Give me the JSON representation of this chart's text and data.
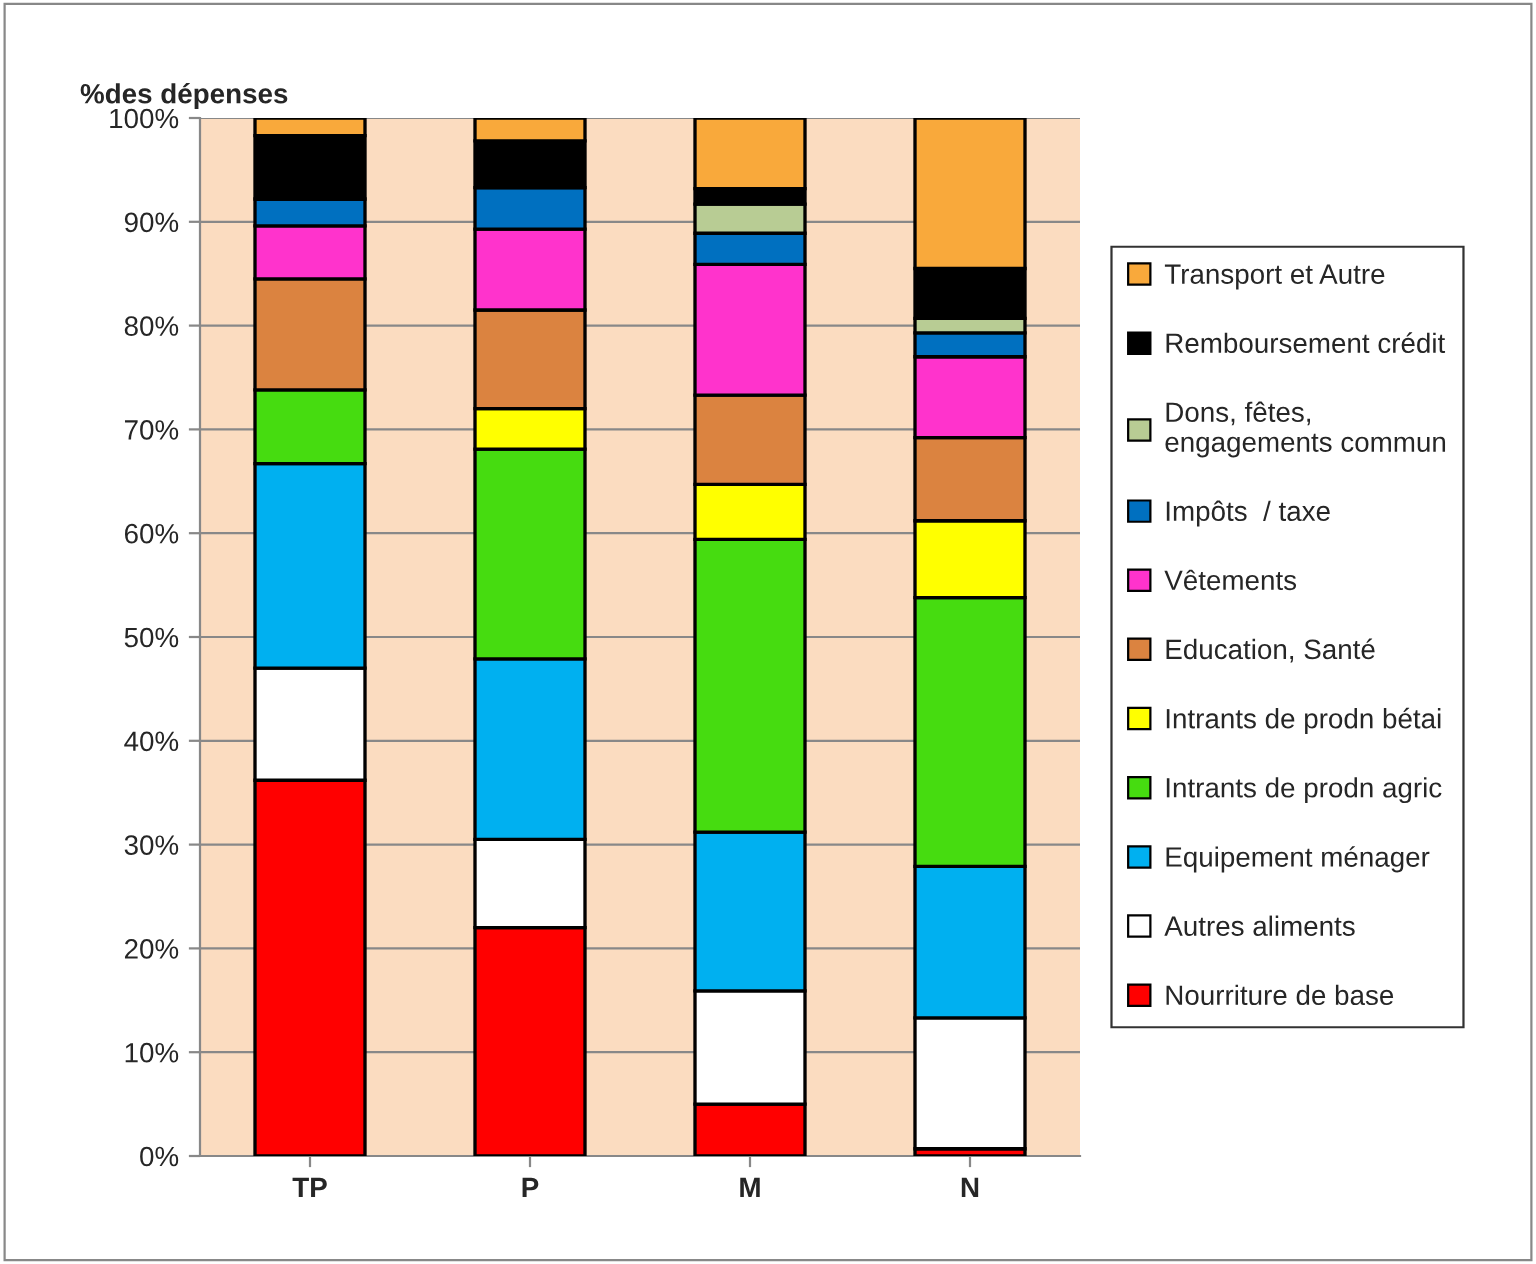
{
  "chart_data": {
    "type": "bar",
    "stacked": true,
    "title": "%des dépenses",
    "categories": [
      "TP",
      "P",
      "M",
      "N"
    ],
    "series": [
      {
        "name": "Nourriture de base",
        "color": "#ff0000",
        "values": [
          36.2,
          22.0,
          5.0,
          0.7
        ]
      },
      {
        "name": "Autres aliments",
        "color": "#ffffff",
        "values": [
          10.8,
          8.5,
          10.9,
          12.6
        ]
      },
      {
        "name": "Equipement ménager",
        "color": "#00b0f0",
        "values": [
          19.7,
          17.4,
          15.3,
          14.6
        ]
      },
      {
        "name": "Intrants de prodn agric",
        "color": "#46dc10",
        "values": [
          7.1,
          20.2,
          28.2,
          25.9
        ]
      },
      {
        "name": "Intrants de prodn bétai",
        "color": "#ffff00",
        "values": [
          null,
          3.9,
          5.3,
          7.4
        ]
      },
      {
        "name": "Education, Santé",
        "color": "#db8340",
        "values": [
          10.7,
          9.5,
          8.6,
          8.0
        ]
      },
      {
        "name": "Vêtements",
        "color": "#ff33cc",
        "values": [
          5.1,
          7.8,
          12.6,
          7.8
        ]
      },
      {
        "name": "Impôts  / taxe",
        "color": "#0070c0",
        "values": [
          2.6,
          4.0,
          3.0,
          2.3
        ]
      },
      {
        "name": "Dons, fêtes,\nengagements commun",
        "color": "#b8cc94",
        "values": [
          0,
          0,
          2.8,
          1.4
        ]
      },
      {
        "name": "Remboursement crédit",
        "color": "#000000",
        "values": [
          6.1,
          4.5,
          1.5,
          4.8
        ]
      },
      {
        "name": "Transport et Autre",
        "color": "#f9a93b",
        "values": [
          1.7,
          2.2,
          6.8,
          14.5
        ]
      }
    ],
    "ylim": [
      0,
      100
    ],
    "yticks": [
      {
        "value": 0,
        "label": "0%"
      },
      {
        "value": 10,
        "label": "10%"
      },
      {
        "value": 20,
        "label": "20%"
      },
      {
        "value": 30,
        "label": "30%"
      },
      {
        "value": 40,
        "label": "40%"
      },
      {
        "value": 50,
        "label": "50%"
      },
      {
        "value": 60,
        "label": "60%"
      },
      {
        "value": 70,
        "label": "70%"
      },
      {
        "value": 80,
        "label": "80%"
      },
      {
        "value": 90,
        "label": "90%"
      },
      {
        "value": 100,
        "label": "100%"
      }
    ],
    "grid": "y",
    "legend": "right"
  }
}
